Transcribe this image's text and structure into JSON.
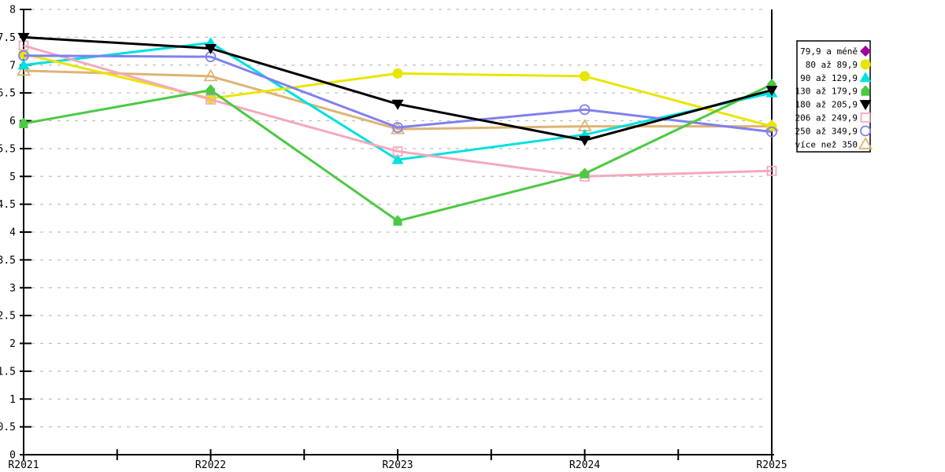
{
  "page": {
    "background": "#ffffff"
  },
  "chart_data": {
    "type": "line",
    "title": "",
    "xlabel": "",
    "ylabel": "",
    "categories": [
      "R2021",
      "R2022",
      "R2023",
      "R2024",
      "R2025"
    ],
    "ylim": [
      0,
      8
    ],
    "ytick_step": 0.5,
    "grid": "horizontal-dashed",
    "grid_color": "#c0c0c0",
    "axis_color": "#000000",
    "legend_position": "right",
    "legend_border_color": "#000000",
    "series": [
      {
        "name": "79,9 a méně",
        "color": "#a000a0",
        "marker": "diamond",
        "marker_style": "filled",
        "values": []
      },
      {
        "name": "80 až 89,9",
        "color": "#e8e600",
        "marker": "circle",
        "marker_style": "filled",
        "values": [
          7.2,
          6.4,
          6.85,
          6.8,
          5.9
        ]
      },
      {
        "name": "90 až 129,9",
        "color": "#00e0e0",
        "marker": "triangle-up",
        "marker_style": "filled",
        "values": [
          7.0,
          7.4,
          5.3,
          5.75,
          6.5
        ]
      },
      {
        "name": "130 až 179,9",
        "color": "#4cc944",
        "marker": "pentagon",
        "marker_style": "filled",
        "values": [
          5.95,
          6.55,
          4.2,
          5.05,
          6.65
        ]
      },
      {
        "name": "180 až 205,9",
        "color": "#000000",
        "marker": "triangle-down",
        "marker_style": "filled",
        "values": [
          7.5,
          7.3,
          6.3,
          5.65,
          6.55
        ]
      },
      {
        "name": "206 až 249,9",
        "color": "#f5a9bc",
        "marker": "square",
        "marker_style": "open",
        "values": [
          7.35,
          6.38,
          5.45,
          5.0,
          5.1
        ]
      },
      {
        "name": "250 až 349,9",
        "color": "#8080f0",
        "marker": "circle",
        "marker_style": "open",
        "values": [
          7.17,
          7.15,
          5.88,
          6.2,
          5.8
        ]
      },
      {
        "name": "více než 350",
        "color": "#dfb375",
        "marker": "triangle-up",
        "marker_style": "open",
        "values": [
          6.9,
          6.8,
          5.85,
          5.9,
          5.9
        ]
      }
    ],
    "draw_order": [
      0,
      7,
      2,
      1,
      5,
      6,
      3,
      4
    ]
  }
}
